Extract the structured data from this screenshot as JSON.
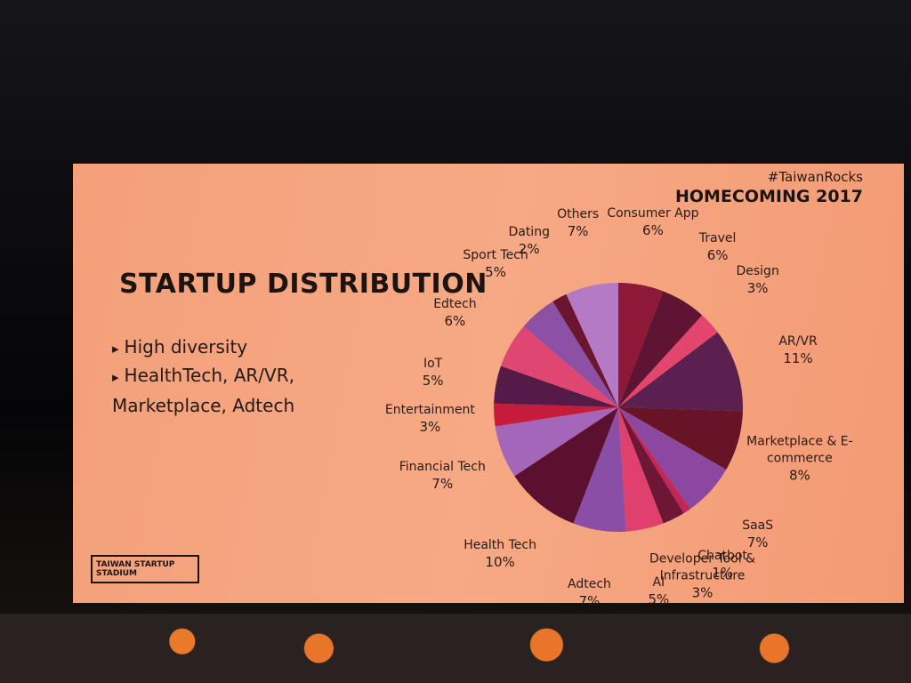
{
  "chart_data": {
    "type": "pie",
    "title": "STARTUP DISTRIBUTION",
    "bullets": [
      "High diversity",
      "HealthTech, AR/VR, Marketplace, Adtech"
    ],
    "hashtag": "#TaiwanRocks",
    "event": "HOMECOMING 2017",
    "logo": "TAIWAN STARTUP STADIUM",
    "categories": [
      "Consumer App",
      "Travel",
      "Design",
      "AR/VR",
      "Marketplace & E-commerce",
      "SaaS",
      "Chatbot",
      "Developer Tool & Infrastructure",
      "AI",
      "Adtech",
      "Health Tech",
      "Financial Tech",
      "Entertainment",
      "IoT",
      "Edtech",
      "Sport Tech",
      "Dating",
      "Others"
    ],
    "values": [
      6,
      6,
      3,
      11,
      8,
      7,
      1,
      3,
      5,
      7,
      10,
      7,
      3,
      5,
      6,
      5,
      2,
      7
    ],
    "value_labels": [
      "6%",
      "6%",
      "3%",
      "11%",
      "8%",
      "7%",
      "1%",
      "3%",
      "5%",
      "7%",
      "10%",
      "7%",
      "3%",
      "5%",
      "6%",
      "5%",
      "2%",
      "7%"
    ],
    "colors": [
      "#8e1838",
      "#5e1432",
      "#e4456f",
      "#5b1f50",
      "#661426",
      "#8c48a0",
      "#c42658",
      "#6e1636",
      "#e0416c",
      "#8a4ea6",
      "#5c1030",
      "#a466b8",
      "#c41c3a",
      "#561a48",
      "#e04672",
      "#8c50a4",
      "#6a1630",
      "#b47ac6"
    ]
  }
}
